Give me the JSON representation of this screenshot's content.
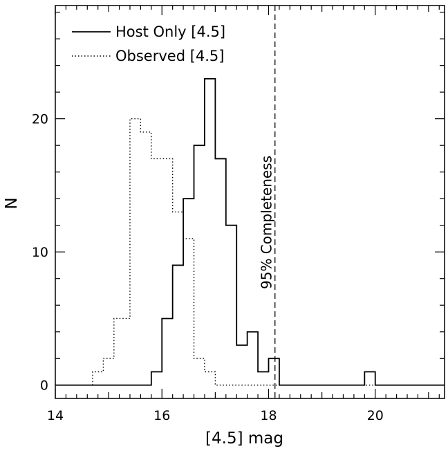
{
  "chart_data": {
    "type": "histogram",
    "xlabel": "[4.5] mag",
    "ylabel": "N",
    "xlim": [
      14,
      21.3
    ],
    "ylim": [
      -1,
      28.5
    ],
    "x_ticks": [
      14,
      16,
      18,
      20
    ],
    "x_tick_labels": [
      "14",
      "16",
      "18",
      "20"
    ],
    "y_ticks": [
      0,
      10,
      20
    ],
    "y_tick_labels": [
      "0",
      "10",
      "20"
    ],
    "bin_width": 0.2,
    "series": [
      {
        "name": "Host Only [4.5]",
        "line_style": "solid",
        "steps": [
          [
            14.0,
            0
          ],
          [
            15.8,
            1
          ],
          [
            16.0,
            5
          ],
          [
            16.2,
            9
          ],
          [
            16.4,
            14
          ],
          [
            16.6,
            18
          ],
          [
            16.8,
            23
          ],
          [
            17.0,
            17
          ],
          [
            17.2,
            12
          ],
          [
            17.4,
            3
          ],
          [
            17.6,
            4
          ],
          [
            17.8,
            1
          ],
          [
            18.0,
            2
          ],
          [
            18.2,
            0
          ],
          [
            19.8,
            1
          ],
          [
            20.0,
            0
          ],
          [
            21.3,
            0
          ]
        ]
      },
      {
        "name": "Observed [4.5]",
        "line_style": "dotted",
        "steps": [
          [
            14.0,
            0
          ],
          [
            14.7,
            1
          ],
          [
            14.9,
            2
          ],
          [
            15.1,
            5
          ],
          [
            15.4,
            20
          ],
          [
            15.6,
            19
          ],
          [
            15.8,
            17
          ],
          [
            16.2,
            13
          ],
          [
            16.4,
            11
          ],
          [
            16.6,
            2
          ],
          [
            16.8,
            1
          ],
          [
            17.0,
            0
          ],
          [
            21.3,
            0
          ]
        ]
      }
    ],
    "annotations": [
      {
        "text": "95% Completeness",
        "x": 18.12,
        "line_style": "dashed"
      }
    ],
    "legend": "top-left",
    "grid": false
  }
}
